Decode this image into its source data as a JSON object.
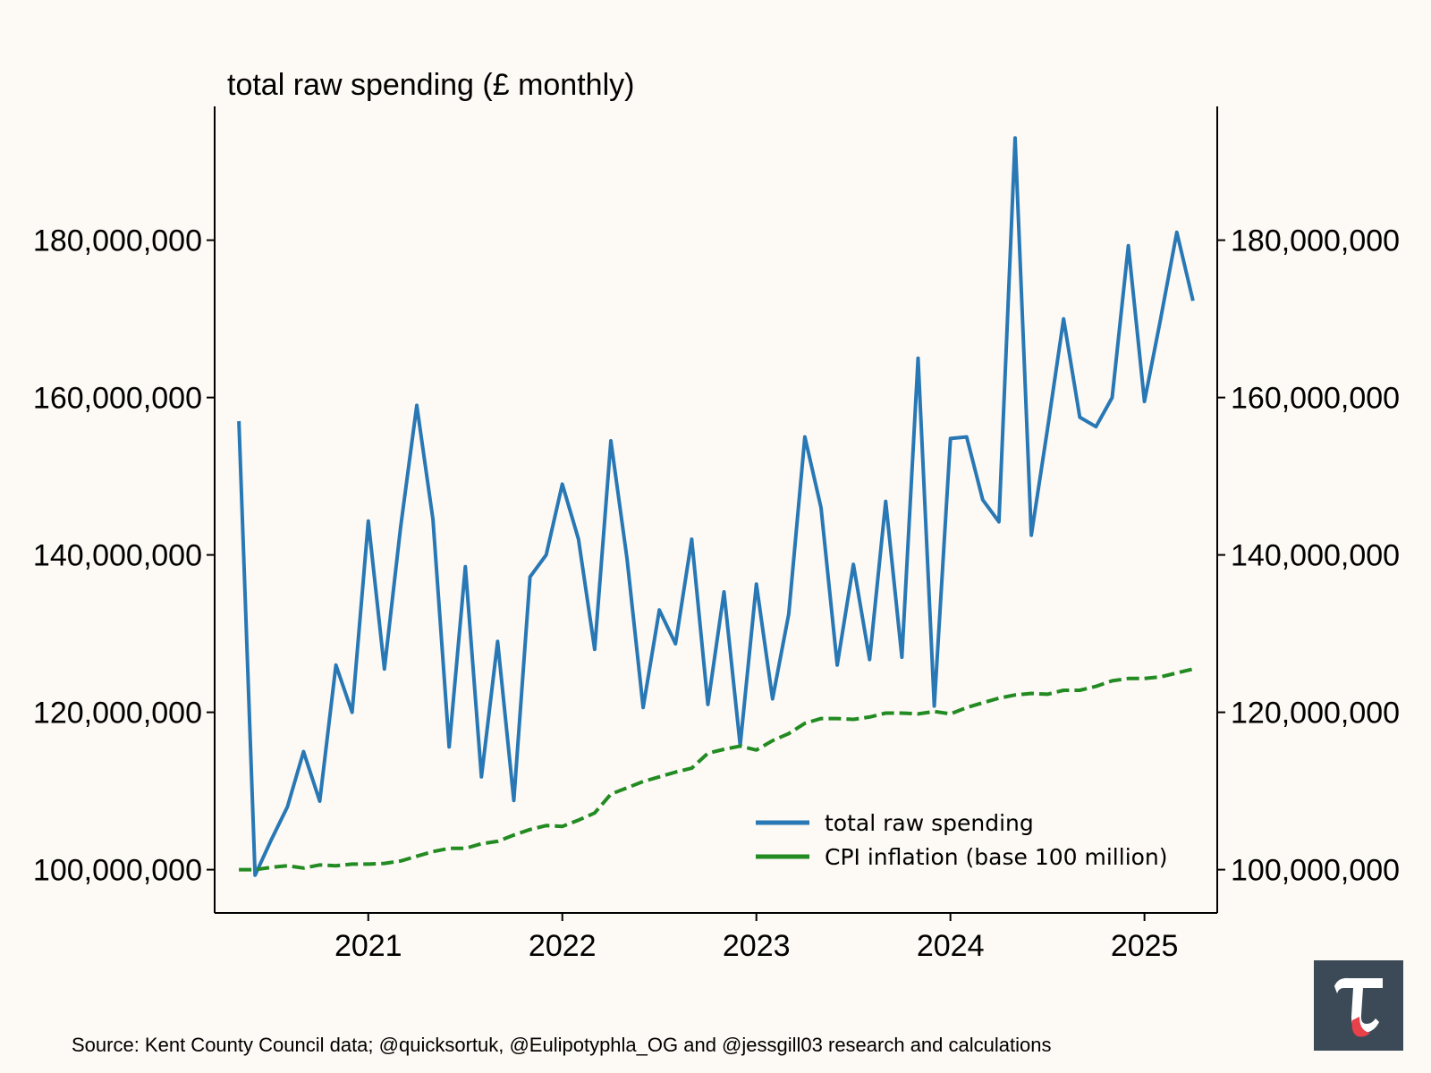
{
  "chart_title": "total raw spending (£ monthly)",
  "source": "Source: Kent County Council data; @quicksortuk, @Eulipotyphla_OG and @jessgill03 research and calculations",
  "logo": {
    "glyph": "τ",
    "background": "#3c4a58",
    "glyph_color": "#ffffff",
    "accent_color": "#e8414a"
  },
  "chart_data": {
    "type": "line",
    "title": "total raw spending (£ monthly)",
    "xlabel": "",
    "ylabel": "",
    "x_unit": "month",
    "x_start": "2020-05",
    "x_end": "2025-04",
    "x_ticks": [
      "2021",
      "2022",
      "2023",
      "2024",
      "2025"
    ],
    "y_ticks": [
      "100,000,000",
      "120,000,000",
      "140,000,000",
      "160,000,000",
      "180,000,000"
    ],
    "y_tick_values": [
      100000000,
      120000000,
      140000000,
      160000000,
      180000000
    ],
    "ylim": [
      94500000,
      197000000
    ],
    "y_axis_right_duplicate": true,
    "grid": false,
    "legend_position": "bottom-right",
    "series": [
      {
        "name": "total raw spending",
        "color": "#2878b5",
        "style": "solid",
        "dates": [
          "2020-05",
          "2020-06",
          "2020-07",
          "2020-08",
          "2020-09",
          "2020-10",
          "2020-11",
          "2020-12",
          "2021-01",
          "2021-02",
          "2021-03",
          "2021-04",
          "2021-05",
          "2021-06",
          "2021-07",
          "2021-08",
          "2021-09",
          "2021-10",
          "2021-11",
          "2021-12",
          "2022-01",
          "2022-02",
          "2022-03",
          "2022-04",
          "2022-05",
          "2022-06",
          "2022-07",
          "2022-08",
          "2022-09",
          "2022-10",
          "2022-11",
          "2022-12",
          "2023-01",
          "2023-02",
          "2023-03",
          "2023-04",
          "2023-05",
          "2023-06",
          "2023-07",
          "2023-08",
          "2023-09",
          "2023-10",
          "2023-11",
          "2023-12",
          "2024-01",
          "2024-02",
          "2024-03",
          "2024-04",
          "2024-05",
          "2024-06",
          "2024-07",
          "2024-08",
          "2024-09",
          "2024-10",
          "2024-11",
          "2024-12",
          "2025-01",
          "2025-02",
          "2025-03",
          "2025-04"
        ],
        "values": [
          157000000,
          99300000,
          103800000,
          108000000,
          115000000,
          108700000,
          126000000,
          120000000,
          144300000,
          125500000,
          143500000,
          159000000,
          144500000,
          115600000,
          138500000,
          111800000,
          129000000,
          108800000,
          137200000,
          140000000,
          149000000,
          142000000,
          128000000,
          154500000,
          139500000,
          120600000,
          133000000,
          128700000,
          142000000,
          121000000,
          135300000,
          115800000,
          136300000,
          121700000,
          132500000,
          155000000,
          146000000,
          126000000,
          138800000,
          126700000,
          146800000,
          127000000,
          165000000,
          120800000,
          154800000,
          155000000,
          147000000,
          144200000,
          193000000,
          142500000,
          156000000,
          170000000,
          157500000,
          156300000,
          160000000,
          179300000,
          159500000,
          170000000,
          181000000,
          172300000
        ]
      },
      {
        "name": "CPI inflation (base 100 million)",
        "color": "#228b22",
        "style": "dashed",
        "dates": [
          "2020-05",
          "2020-06",
          "2020-07",
          "2020-08",
          "2020-09",
          "2020-10",
          "2020-11",
          "2020-12",
          "2021-01",
          "2021-02",
          "2021-03",
          "2021-04",
          "2021-05",
          "2021-06",
          "2021-07",
          "2021-08",
          "2021-09",
          "2021-10",
          "2021-11",
          "2021-12",
          "2022-01",
          "2022-02",
          "2022-03",
          "2022-04",
          "2022-05",
          "2022-06",
          "2022-07",
          "2022-08",
          "2022-09",
          "2022-10",
          "2022-11",
          "2022-12",
          "2023-01",
          "2023-02",
          "2023-03",
          "2023-04",
          "2023-05",
          "2023-06",
          "2023-07",
          "2023-08",
          "2023-09",
          "2023-10",
          "2023-11",
          "2023-12",
          "2024-01",
          "2024-02",
          "2024-03",
          "2024-04",
          "2024-05",
          "2024-06",
          "2024-07",
          "2024-08",
          "2024-09",
          "2024-10",
          "2024-11",
          "2024-12",
          "2025-01",
          "2025-02",
          "2025-03",
          "2025-04"
        ],
        "values": [
          100000000,
          100000000,
          100300000,
          100500000,
          100200000,
          100600000,
          100500000,
          100700000,
          100700000,
          100800000,
          101100000,
          101700000,
          102300000,
          102700000,
          102700000,
          103300000,
          103600000,
          104400000,
          105100000,
          105600000,
          105500000,
          106300000,
          107200000,
          109600000,
          110400000,
          111200000,
          111800000,
          112400000,
          112900000,
          114800000,
          115300000,
          115700000,
          115200000,
          116400000,
          117300000,
          118600000,
          119200000,
          119200000,
          119100000,
          119400000,
          119900000,
          119900000,
          119800000,
          120100000,
          119800000,
          120600000,
          121200000,
          121800000,
          122200000,
          122400000,
          122300000,
          122800000,
          122800000,
          123300000,
          124000000,
          124300000,
          124300000,
          124500000,
          125000000,
          125500000
        ]
      }
    ]
  }
}
